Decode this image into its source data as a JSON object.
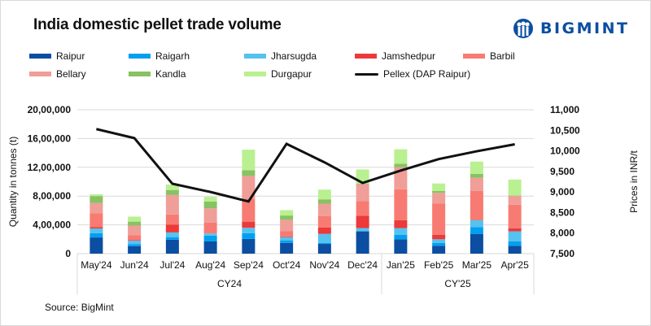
{
  "title": "India domestic pellet trade volume",
  "logo": {
    "text": "BIGMINT",
    "icon": "bigmint-people-logo-icon",
    "color": "#0b4ea2"
  },
  "source": "Source: BigMint",
  "chart_data": {
    "type": "bar",
    "subtype": "stacked-bar-with-line",
    "title": "India domestic pellet trade volume",
    "categories": [
      "May'24",
      "Jun'24",
      "Jul'24",
      "Aug'24",
      "Sep'24",
      "Oct'24",
      "Nov'24",
      "Dec'24",
      "Jan'25",
      "Feb'25",
      "Mar'25",
      "Apr'25"
    ],
    "category_groups": [
      {
        "label": "CY24",
        "span": 8
      },
      {
        "label": "CY'25",
        "span": 4
      }
    ],
    "ylabel": "Quantity in tonnes (t)",
    "y2label": "Prices in INR/t",
    "ylim": [
      0,
      2000000
    ],
    "y_ticks": [
      0,
      400000,
      800000,
      1200000,
      1600000,
      2000000
    ],
    "y_tick_labels": [
      "0",
      "4,00,000",
      "8,00,000",
      "12,00,000",
      "16,00,000",
      "20,00,000"
    ],
    "y2lim": [
      7500,
      11000
    ],
    "y2_ticks": [
      7500,
      8000,
      8500,
      9000,
      9500,
      10000,
      10500,
      11000
    ],
    "y2_tick_labels": [
      "7,500",
      "8,000",
      "8,500",
      "9,000",
      "9,500",
      "10,000",
      "10,500",
      "11,000"
    ],
    "grid": true,
    "legend_position": "top",
    "series": [
      {
        "name": "Raipur",
        "color": "#0b4ea2",
        "type": "bar",
        "values": [
          225000,
          105000,
          195000,
          170000,
          205000,
          150000,
          135000,
          310000,
          200000,
          110000,
          275000,
          110000
        ]
      },
      {
        "name": "Raigarh",
        "color": "#00a0f0",
        "type": "bar",
        "values": [
          60000,
          25000,
          35000,
          80000,
          80000,
          35000,
          15000,
          0,
          60000,
          40000,
          95000,
          60000
        ]
      },
      {
        "name": "Jharsugda",
        "color": "#56c2f0",
        "type": "bar",
        "values": [
          65000,
          50000,
          65000,
          30000,
          75000,
          45000,
          125000,
          45000,
          95000,
          50000,
          95000,
          140000
        ]
      },
      {
        "name": "Jamshedpur",
        "color": "#ec3939",
        "type": "bar",
        "values": [
          20000,
          10000,
          110000,
          0,
          85000,
          10000,
          90000,
          170000,
          110000,
          60000,
          5000,
          40000
        ]
      },
      {
        "name": "Barbil",
        "color": "#f77b72",
        "type": "bar",
        "values": [
          190000,
          65000,
          140000,
          150000,
          320000,
          75000,
          155000,
          205000,
          430000,
          435000,
          400000,
          330000
        ]
      },
      {
        "name": "Bellary",
        "color": "#f09e98",
        "type": "bar",
        "values": [
          145000,
          135000,
          270000,
          200000,
          315000,
          155000,
          175000,
          235000,
          305000,
          150000,
          185000,
          125000
        ]
      },
      {
        "name": "Kandla",
        "color": "#88c263",
        "type": "bar",
        "values": [
          95000,
          55000,
          70000,
          95000,
          80000,
          60000,
          60000,
          10000,
          50000,
          25000,
          55000,
          5000
        ]
      },
      {
        "name": "Durgapur",
        "color": "#b9f090",
        "type": "bar",
        "values": [
          25000,
          70000,
          75000,
          65000,
          285000,
          75000,
          135000,
          195000,
          200000,
          105000,
          170000,
          220000
        ]
      },
      {
        "name": "Pellex (DAP Raipur)",
        "color": "#111111",
        "type": "line",
        "axis": "right",
        "values": [
          10530,
          10310,
          9200,
          9000,
          8770,
          10170,
          9720,
          9220,
          9520,
          9800,
          9990,
          10160
        ]
      }
    ]
  }
}
